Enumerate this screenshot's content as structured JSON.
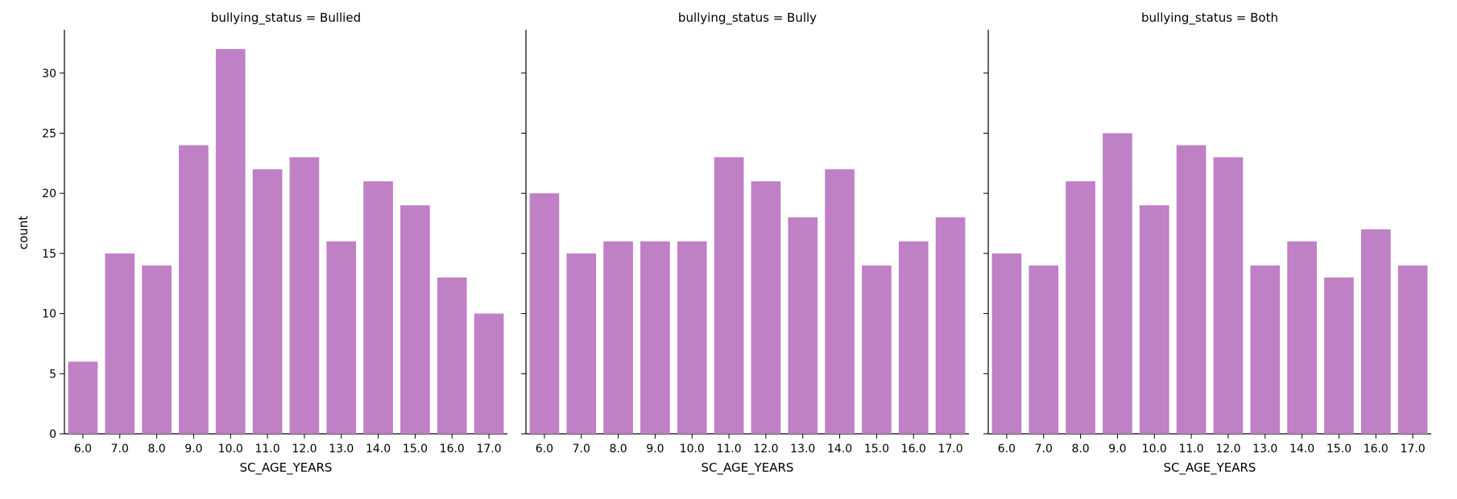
{
  "chart_data": {
    "type": "bar",
    "bar_color": "#bf80c6",
    "categories": [
      "6.0",
      "7.0",
      "8.0",
      "9.0",
      "10.0",
      "11.0",
      "12.0",
      "13.0",
      "14.0",
      "15.0",
      "16.0",
      "17.0"
    ],
    "ylabel": "count",
    "xlabel": "SC_AGE_YEARS",
    "ylim": [
      0,
      33.6
    ],
    "yticks": [
      "0",
      "5",
      "10",
      "15",
      "20",
      "25",
      "30"
    ],
    "sharey": true,
    "grid": false,
    "facets": [
      {
        "title": "bullying_status = Bullied",
        "values": [
          6,
          15,
          14,
          24,
          32,
          22,
          23,
          16,
          21,
          19,
          13,
          10
        ]
      },
      {
        "title": "bullying_status = Bully",
        "values": [
          20,
          15,
          16,
          16,
          16,
          23,
          21,
          18,
          22,
          14,
          16,
          18
        ]
      },
      {
        "title": "bullying_status = Both",
        "values": [
          15,
          14,
          21,
          25,
          19,
          24,
          23,
          14,
          16,
          13,
          17,
          14
        ]
      }
    ]
  }
}
